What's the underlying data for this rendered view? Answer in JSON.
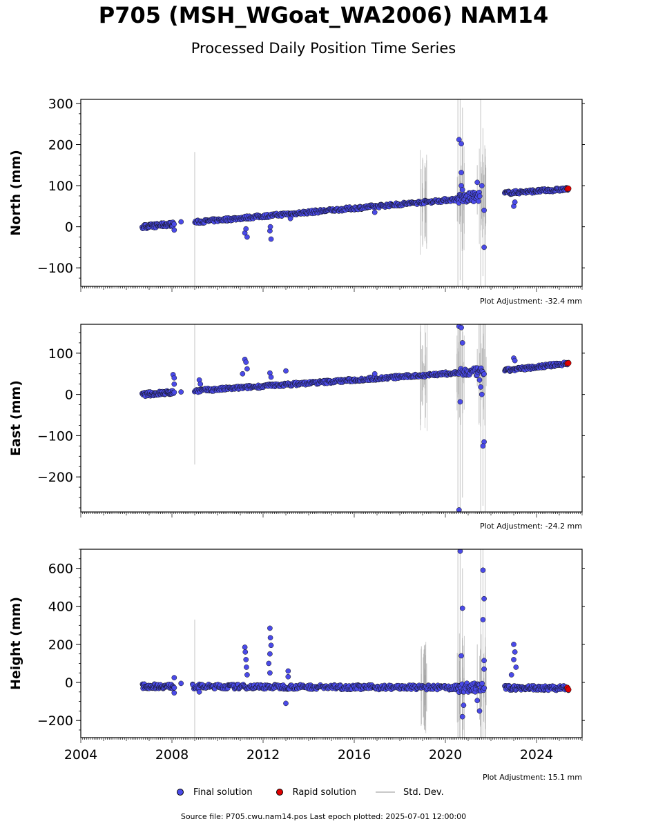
{
  "title": "P705 (MSH_WGoat_WA2006) NAM14",
  "subtitle": "Processed Daily Position Time Series",
  "source": "Source file: P705.cwu.nam14.pos  Last epoch plotted: 2025-07-01 12:00:00",
  "legend": {
    "final": "Final solution",
    "rapid": "Rapid solution",
    "std": "Std. Dev."
  },
  "colors": {
    "final": "#4a4ae8",
    "rapid": "#e00000",
    "std": "#c8c8c8"
  },
  "chart_data": [
    {
      "type": "scatter",
      "ylabel": "North (mm)",
      "adjustment": "Plot Adjustment: -32.4 mm",
      "ylim": [
        -145,
        310
      ],
      "yticks": [
        -100,
        0,
        100,
        200,
        300
      ],
      "ytick_labels": [
        "−100",
        "0",
        "100",
        "200",
        "300"
      ],
      "trend": {
        "x": [
          2006.7,
          2020.5,
          2022.6,
          2025.5
        ],
        "y": [
          0,
          67,
          82,
          92
        ]
      },
      "groups": [
        {
          "x": [
            2006.7,
            2008.1
          ],
          "trend": true,
          "n": 70,
          "jitter": 5
        },
        {
          "x": [
            2009.0,
            2020.6
          ],
          "trend": true,
          "n": 380,
          "jitter": 4
        },
        {
          "x": [
            2020.6,
            2021.5
          ],
          "trend": true,
          "n": 40,
          "jitter": 12
        },
        {
          "x": [
            2022.6,
            2025.4
          ],
          "trend": true,
          "n": 110,
          "jitter": 4
        }
      ],
      "outliers": [
        {
          "x": 2008.1,
          "y": -8
        },
        {
          "x": 2008.4,
          "y": 12
        },
        {
          "x": 2011.2,
          "y": -15
        },
        {
          "x": 2011.3,
          "y": -25
        },
        {
          "x": 2011.25,
          "y": -5
        },
        {
          "x": 2012.3,
          "y": -10
        },
        {
          "x": 2012.35,
          "y": -30
        },
        {
          "x": 2012.32,
          "y": 0
        },
        {
          "x": 2013.2,
          "y": 20
        },
        {
          "x": 2016.9,
          "y": 35
        },
        {
          "x": 2020.6,
          "y": 212
        },
        {
          "x": 2020.7,
          "y": 202
        },
        {
          "x": 2020.7,
          "y": 132
        },
        {
          "x": 2020.7,
          "y": 100
        },
        {
          "x": 2020.75,
          "y": 90
        },
        {
          "x": 2021.4,
          "y": 108
        },
        {
          "x": 2021.6,
          "y": 100
        },
        {
          "x": 2021.7,
          "y": 40
        },
        {
          "x": 2021.7,
          "y": -50
        },
        {
          "x": 2023.0,
          "y": 50
        },
        {
          "x": 2023.05,
          "y": 60
        }
      ],
      "rapid": [
        {
          "x": 2025.35,
          "y": 92
        },
        {
          "x": 2025.4,
          "y": 93
        }
      ],
      "stddev": [
        {
          "x": 2009.0,
          "y": [
            -145,
            182
          ]
        },
        {
          "x": 2019.0,
          "y": [
            35,
            95
          ]
        },
        {
          "x": 2019.1,
          "y": [
            40,
            92
          ]
        },
        {
          "x": 2020.55,
          "y": [
            -145,
            310
          ]
        },
        {
          "x": 2020.65,
          "y": [
            -130,
            310
          ]
        },
        {
          "x": 2020.75,
          "y": [
            -145,
            290
          ]
        },
        {
          "x": 2021.4,
          "y": [
            30,
            150
          ]
        },
        {
          "x": 2021.55,
          "y": [
            -145,
            310
          ]
        },
        {
          "x": 2021.65,
          "y": [
            -120,
            240
          ]
        },
        {
          "x": 2021.75,
          "y": [
            -145,
            190
          ]
        }
      ]
    },
    {
      "type": "scatter",
      "ylabel": "East (mm)",
      "adjustment": "Plot Adjustment: -24.2 mm",
      "ylim": [
        -285,
        170
      ],
      "yticks": [
        -200,
        -100,
        0,
        100
      ],
      "ytick_labels": [
        "−200",
        "−100",
        "0",
        "100"
      ],
      "trend": {
        "x": [
          2006.7,
          2020.5,
          2022.6,
          2025.5
        ],
        "y": [
          0,
          52,
          58,
          76
        ]
      },
      "groups": [
        {
          "x": [
            2006.7,
            2008.1
          ],
          "trend": true,
          "n": 70,
          "jitter": 5
        },
        {
          "x": [
            2009.0,
            2020.6
          ],
          "trend": true,
          "n": 380,
          "jitter": 4
        },
        {
          "x": [
            2020.6,
            2021.7
          ],
          "trend": true,
          "n": 40,
          "jitter": 10
        },
        {
          "x": [
            2022.6,
            2025.4
          ],
          "trend": true,
          "n": 110,
          "jitter": 4
        }
      ],
      "outliers": [
        {
          "x": 2008.05,
          "y": 48
        },
        {
          "x": 2008.1,
          "y": 40
        },
        {
          "x": 2008.1,
          "y": 25
        },
        {
          "x": 2008.4,
          "y": 6
        },
        {
          "x": 2009.2,
          "y": 35
        },
        {
          "x": 2009.25,
          "y": 25
        },
        {
          "x": 2011.2,
          "y": 85
        },
        {
          "x": 2011.25,
          "y": 78
        },
        {
          "x": 2011.3,
          "y": 62
        },
        {
          "x": 2011.1,
          "y": 50
        },
        {
          "x": 2012.3,
          "y": 52
        },
        {
          "x": 2012.35,
          "y": 42
        },
        {
          "x": 2013.0,
          "y": 57
        },
        {
          "x": 2016.9,
          "y": 50
        },
        {
          "x": 2020.6,
          "y": 165
        },
        {
          "x": 2020.7,
          "y": 162
        },
        {
          "x": 2020.75,
          "y": 125
        },
        {
          "x": 2020.65,
          "y": -18
        },
        {
          "x": 2020.6,
          "y": -280
        },
        {
          "x": 2021.5,
          "y": 35
        },
        {
          "x": 2021.55,
          "y": 18
        },
        {
          "x": 2021.6,
          "y": 0
        },
        {
          "x": 2021.7,
          "y": -115
        },
        {
          "x": 2021.65,
          "y": -125
        },
        {
          "x": 2023.0,
          "y": 88
        },
        {
          "x": 2023.05,
          "y": 82
        }
      ],
      "rapid": [
        {
          "x": 2025.35,
          "y": 75
        },
        {
          "x": 2025.4,
          "y": 76
        }
      ],
      "stddev": [
        {
          "x": 2009.0,
          "y": [
            -170,
            170
          ]
        },
        {
          "x": 2019.0,
          "y": [
            10,
            80
          ]
        },
        {
          "x": 2019.1,
          "y": [
            15,
            75
          ]
        },
        {
          "x": 2020.55,
          "y": [
            -285,
            170
          ]
        },
        {
          "x": 2020.65,
          "y": [
            -285,
            170
          ]
        },
        {
          "x": 2020.75,
          "y": [
            -250,
            170
          ]
        },
        {
          "x": 2021.4,
          "y": [
            20,
            110
          ]
        },
        {
          "x": 2021.55,
          "y": [
            -285,
            170
          ]
        },
        {
          "x": 2021.65,
          "y": [
            -270,
            170
          ]
        },
        {
          "x": 2021.75,
          "y": [
            -285,
            170
          ]
        }
      ]
    },
    {
      "type": "scatter",
      "ylabel": "Height (mm)",
      "adjustment": "Plot Adjustment: 15.1 mm",
      "ylim": [
        -290,
        700
      ],
      "yticks": [
        -200,
        0,
        200,
        400,
        600
      ],
      "ytick_labels": [
        "−200",
        "0",
        "200",
        "400",
        "600"
      ],
      "trend": {
        "x": [
          2006.7,
          2025.5
        ],
        "y": [
          -20,
          -30
        ]
      },
      "groups": [
        {
          "x": [
            2006.7,
            2008.1
          ],
          "trend": true,
          "n": 70,
          "jitter": 12
        },
        {
          "x": [
            2008.9,
            2020.6
          ],
          "trend": true,
          "n": 380,
          "jitter": 12
        },
        {
          "x": [
            2020.6,
            2021.7
          ],
          "trend": true,
          "n": 40,
          "jitter": 25
        },
        {
          "x": [
            2022.6,
            2025.4
          ],
          "trend": true,
          "n": 110,
          "jitter": 12
        }
      ],
      "outliers": [
        {
          "x": 2008.1,
          "y": 25
        },
        {
          "x": 2008.1,
          "y": -55
        },
        {
          "x": 2008.4,
          "y": -5
        },
        {
          "x": 2009.2,
          "y": -50
        },
        {
          "x": 2011.2,
          "y": 185
        },
        {
          "x": 2011.22,
          "y": 160
        },
        {
          "x": 2011.25,
          "y": 120
        },
        {
          "x": 2011.27,
          "y": 80
        },
        {
          "x": 2011.3,
          "y": 40
        },
        {
          "x": 2012.3,
          "y": 285
        },
        {
          "x": 2012.32,
          "y": 235
        },
        {
          "x": 2012.35,
          "y": 195
        },
        {
          "x": 2012.3,
          "y": 150
        },
        {
          "x": 2012.25,
          "y": 100
        },
        {
          "x": 2012.3,
          "y": 50
        },
        {
          "x": 2013.1,
          "y": 60
        },
        {
          "x": 2013.1,
          "y": 30
        },
        {
          "x": 2013.0,
          "y": -110
        },
        {
          "x": 2020.65,
          "y": 690
        },
        {
          "x": 2020.75,
          "y": 390
        },
        {
          "x": 2020.7,
          "y": 140
        },
        {
          "x": 2020.75,
          "y": -180
        },
        {
          "x": 2020.8,
          "y": -120
        },
        {
          "x": 2021.4,
          "y": -95
        },
        {
          "x": 2021.5,
          "y": -150
        },
        {
          "x": 2021.65,
          "y": 590
        },
        {
          "x": 2021.7,
          "y": 440
        },
        {
          "x": 2021.65,
          "y": 330
        },
        {
          "x": 2021.7,
          "y": 115
        },
        {
          "x": 2021.7,
          "y": 70
        },
        {
          "x": 2023.0,
          "y": 200
        },
        {
          "x": 2023.05,
          "y": 160
        },
        {
          "x": 2023.0,
          "y": 120
        },
        {
          "x": 2023.1,
          "y": 80
        },
        {
          "x": 2022.9,
          "y": 40
        }
      ],
      "rapid": [
        {
          "x": 2025.35,
          "y": -28
        },
        {
          "x": 2025.4,
          "y": -38
        }
      ],
      "stddev": [
        {
          "x": 2009.0,
          "y": [
            -290,
            330
          ]
        },
        {
          "x": 2018.95,
          "y": [
            -220,
            190
          ]
        },
        {
          "x": 2019.05,
          "y": [
            -180,
            150
          ]
        },
        {
          "x": 2019.15,
          "y": [
            -150,
            100
          ]
        },
        {
          "x": 2020.55,
          "y": [
            -290,
            700
          ]
        },
        {
          "x": 2020.65,
          "y": [
            -290,
            700
          ]
        },
        {
          "x": 2020.75,
          "y": [
            -290,
            600
          ]
        },
        {
          "x": 2021.4,
          "y": [
            -150,
            200
          ]
        },
        {
          "x": 2021.55,
          "y": [
            -290,
            700
          ]
        },
        {
          "x": 2021.65,
          "y": [
            -290,
            700
          ]
        },
        {
          "x": 2021.75,
          "y": [
            -290,
            600
          ]
        }
      ]
    }
  ],
  "xaxis": {
    "xlim": [
      2004,
      2026
    ],
    "ticks": [
      2004,
      2008,
      2012,
      2016,
      2020,
      2024
    ],
    "tick_labels": [
      "2004",
      "2008",
      "2012",
      "2016",
      "2020",
      "2024"
    ]
  }
}
